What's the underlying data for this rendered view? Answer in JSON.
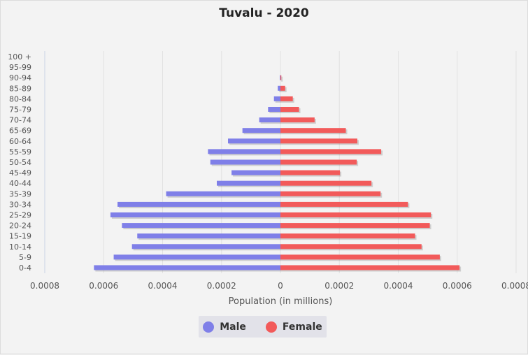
{
  "chart_data": {
    "type": "bar",
    "orientation": "horizontal-population-pyramid",
    "title": "Tuvalu - 2020",
    "xlabel": "Population (in millions)",
    "ylabel": "",
    "xlim": [
      -0.0008,
      0.0008
    ],
    "x_ticks": [
      -0.0008,
      -0.0006,
      -0.0004,
      -0.0002,
      0,
      0.0002,
      0.0004,
      0.0006,
      0.0008
    ],
    "x_tick_labels": [
      "0.0008",
      "0.0006",
      "0.0004",
      "0.0002",
      "0",
      "0.0002",
      "0.0004",
      "0.0006",
      "0.0008"
    ],
    "categories": [
      "0-4",
      "5-9",
      "10-14",
      "15-19",
      "20-24",
      "25-29",
      "30-34",
      "35-39",
      "40-44",
      "45-49",
      "50-54",
      "55-59",
      "60-64",
      "65-69",
      "70-74",
      "75-79",
      "80-84",
      "85-89",
      "90-94",
      "95-99",
      "100 +"
    ],
    "series": [
      {
        "name": "Male",
        "color": "#7f7fe8",
        "values": [
          0.000633,
          0.000566,
          0.000504,
          0.000486,
          0.000538,
          0.000577,
          0.000553,
          0.000388,
          0.000216,
          0.000166,
          0.000238,
          0.000246,
          0.000178,
          0.000129,
          7.2e-05,
          4.2e-05,
          2.2e-05,
          9e-06,
          2e-06,
          0.0,
          0.0
        ]
      },
      {
        "name": "Female",
        "color": "#f25a5a",
        "values": [
          0.000608,
          0.000541,
          0.000479,
          0.000457,
          0.000507,
          0.000511,
          0.000433,
          0.00034,
          0.000309,
          0.000202,
          0.000259,
          0.000342,
          0.000261,
          0.000222,
          0.000116,
          6.3e-05,
          4.2e-05,
          1.6e-05,
          3e-06,
          0.0,
          0.0
        ]
      }
    ]
  },
  "legend": {
    "male_label": "Male",
    "female_label": "Female"
  },
  "colors": {
    "male": "#7f7fe8",
    "female": "#f25a5a"
  }
}
